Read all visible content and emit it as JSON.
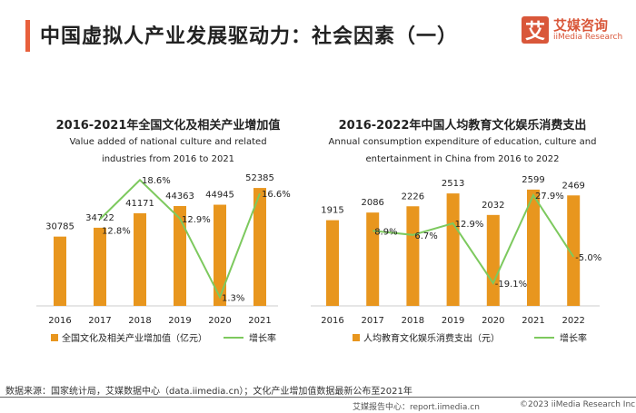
{
  "title": "中国虚拟人产业发展驱动力：社会因素（一）",
  "logo": {
    "mark": "艾",
    "cn": "艾媒咨询",
    "en": "iiMedia Research"
  },
  "colors": {
    "bar": "#e8961e",
    "line": "#7dc95e",
    "accent": "#e8603c"
  },
  "chart_data": [
    {
      "type": "bar+line",
      "title": "2016-2021年全国文化及相关产业增加值",
      "subtitle": [
        "Value added of national culture and related",
        "industries from 2016 to 2021"
      ],
      "categories": [
        "2016",
        "2017",
        "2018",
        "2019",
        "2020",
        "2021"
      ],
      "series": [
        {
          "name": "全国文化及相关产业增加值（亿元）",
          "type": "bar",
          "values": [
            30785,
            34722,
            41171,
            44363,
            44945,
            52385
          ]
        },
        {
          "name": "增长率",
          "type": "line",
          "unit": "%",
          "values": [
            null,
            12.8,
            18.6,
            12.9,
            1.3,
            16.6
          ]
        }
      ],
      "legend": "bottom"
    },
    {
      "type": "bar+line",
      "title": "2016-2022年中国人均教育文化娱乐消费支出",
      "subtitle": [
        "Annual consumption expenditure of education, culture and",
        "entertainment in China from 2016 to 2022"
      ],
      "categories": [
        "2016",
        "2017",
        "2018",
        "2019",
        "2020",
        "2021",
        "2022"
      ],
      "series": [
        {
          "name": "人均教育文化娱乐消费支出（元）",
          "type": "bar",
          "values": [
            1915,
            2086,
            2226,
            2513,
            2032,
            2599,
            2469
          ]
        },
        {
          "name": "增长率",
          "type": "line",
          "unit": "%",
          "values": [
            null,
            8.9,
            6.7,
            12.9,
            -19.1,
            27.9,
            -5.0
          ]
        }
      ],
      "legend": "bottom"
    }
  ],
  "source": "数据来源：国家统计局，艾媒数据中心（data.iimedia.cn）；文化产业增加值数据最新公布至2021年",
  "footer": {
    "report": "艾媒报告中心：report.iimedia.cn",
    "copyright": "©2023  iiMedia Research  Inc"
  }
}
